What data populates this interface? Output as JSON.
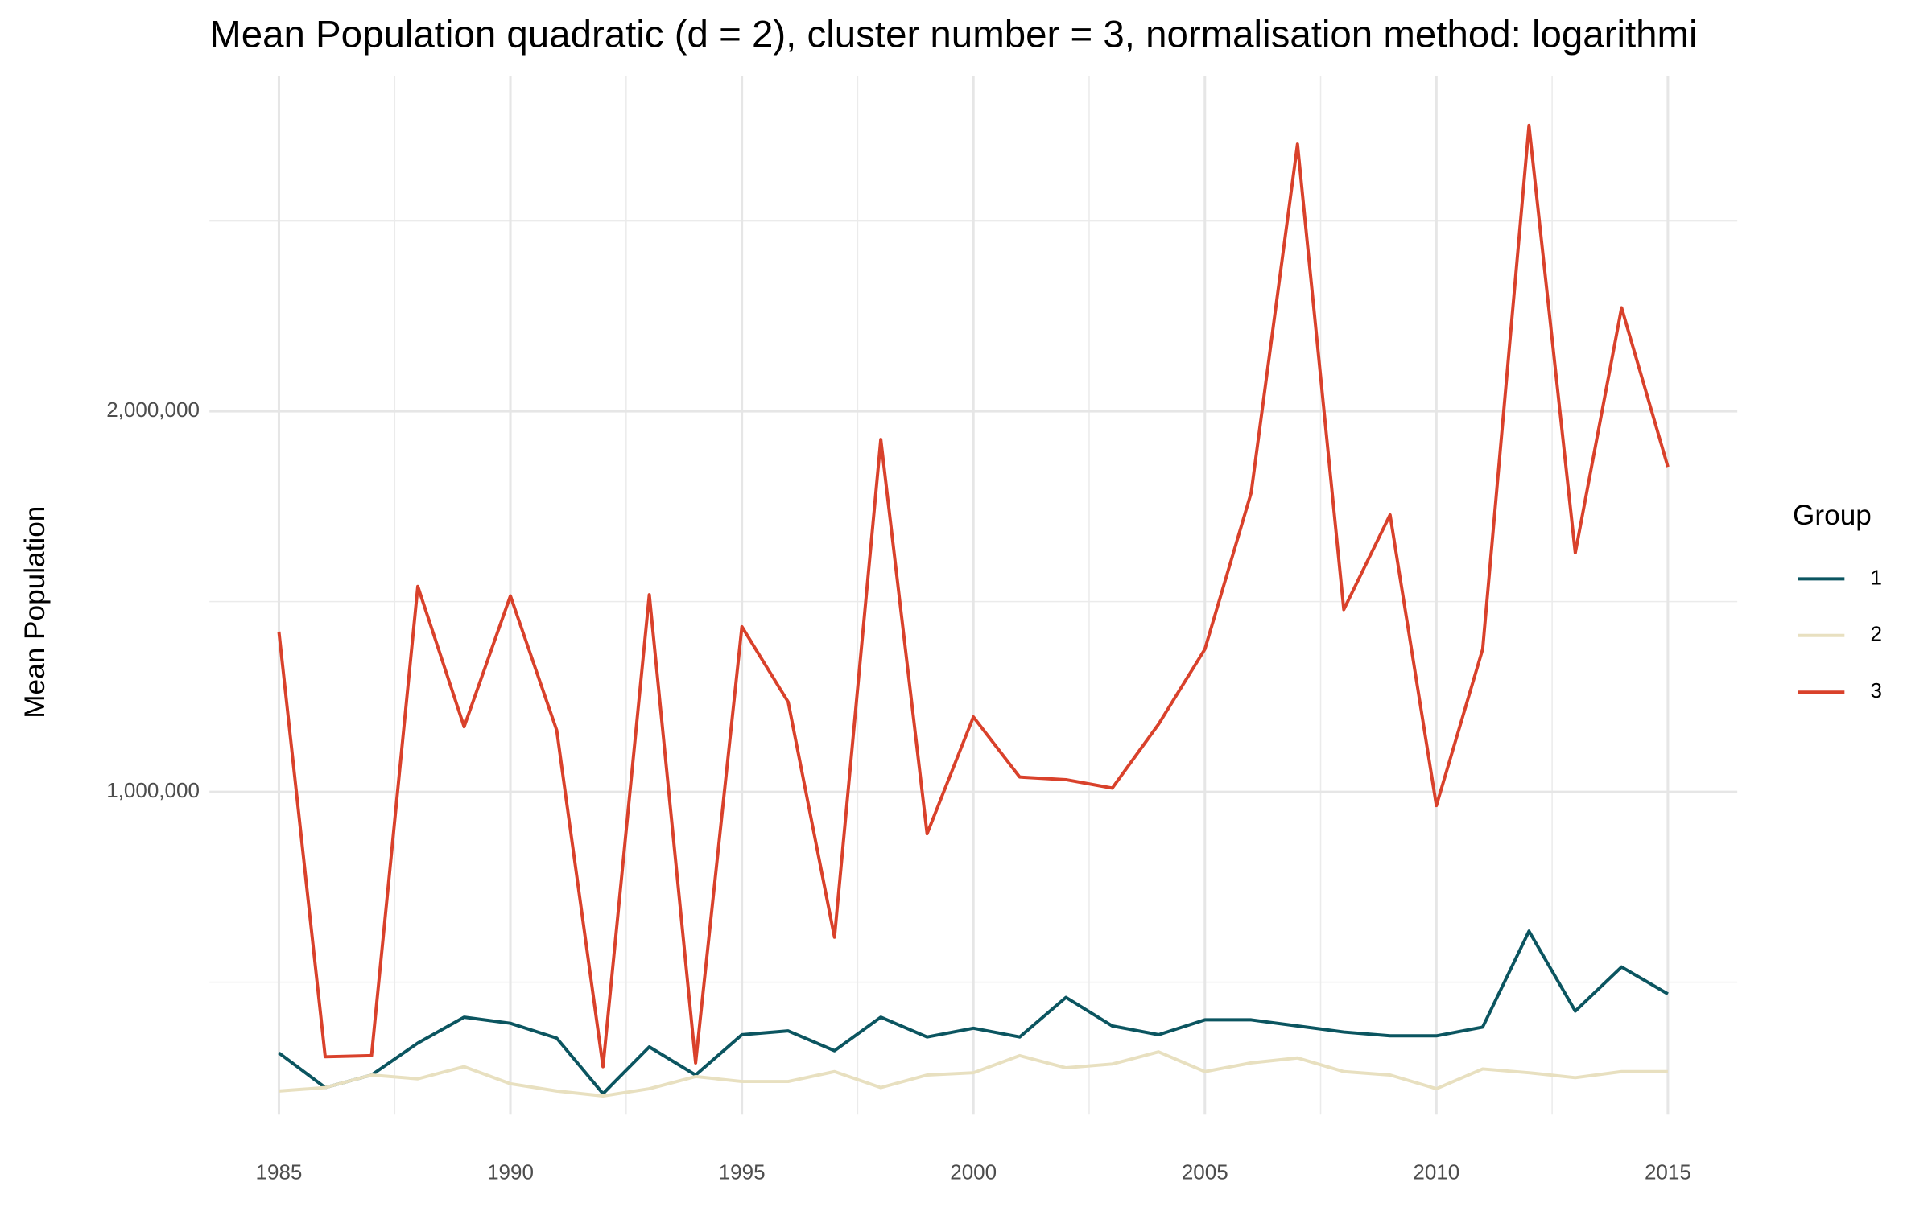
{
  "chart_data": {
    "type": "line",
    "title": "Mean Population quadratic (d = 2), cluster number = 3, normalisation method: logarithmi",
    "y_label": "Mean Population",
    "legend_title": "Group",
    "legend_position": "right",
    "grid": true,
    "x": [
      1985,
      1986,
      1987,
      1988,
      1989,
      1990,
      1991,
      1992,
      1993,
      1994,
      1995,
      1996,
      1997,
      1998,
      1999,
      2000,
      2001,
      2002,
      2003,
      2004,
      2005,
      2006,
      2007,
      2008,
      2009,
      2010,
      2011,
      2012,
      2013,
      2014,
      2015
    ],
    "xlim": [
      1983.5,
      2016.5
    ],
    "xticks": [
      1985,
      1990,
      1995,
      2000,
      2005,
      2010,
      2015
    ],
    "x_minor_ticks": [
      1987.5,
      1992.5,
      1997.5,
      2002.5,
      2007.5,
      2012.5
    ],
    "ylim": [
      152000,
      2880000
    ],
    "yticks": [
      {
        "value": 1000000,
        "label": "1,000,000"
      },
      {
        "value": 2000000,
        "label": "2,000,000"
      }
    ],
    "y_minor_ticks": [
      500000,
      1500000,
      2500000
    ],
    "series": [
      {
        "name": "1",
        "color": "#0b5560",
        "values": [
          314000,
          223000,
          256000,
          340000,
          408000,
          392000,
          353000,
          207000,
          330000,
          256000,
          362000,
          372000,
          320000,
          408000,
          356000,
          379000,
          356000,
          460000,
          385000,
          362000,
          401000,
          401000,
          385000,
          369000,
          359000,
          359000,
          382000,
          634000,
          424000,
          540000,
          469000
        ]
      },
      {
        "name": "2",
        "color": "#e8e0c0",
        "values": [
          214000,
          223000,
          256000,
          246000,
          278000,
          233000,
          214000,
          201000,
          220000,
          252000,
          239000,
          239000,
          265000,
          223000,
          256000,
          262000,
          307000,
          275000,
          285000,
          317000,
          265000,
          288000,
          301000,
          265000,
          256000,
          220000,
          272000,
          262000,
          249000,
          265000,
          265000
        ]
      },
      {
        "name": "3",
        "color": "#d9412b",
        "values": [
          1421000,
          304000,
          307000,
          1540000,
          1171000,
          1515000,
          1162000,
          278000,
          1518000,
          288000,
          1434000,
          1236000,
          618000,
          1926000,
          890000,
          1197000,
          1039000,
          1032000,
          1010000,
          1178000,
          1375000,
          1786000,
          2702000,
          1479000,
          1728000,
          964000,
          1375000,
          2751000,
          1628000,
          2272000,
          1854000
        ]
      }
    ]
  }
}
